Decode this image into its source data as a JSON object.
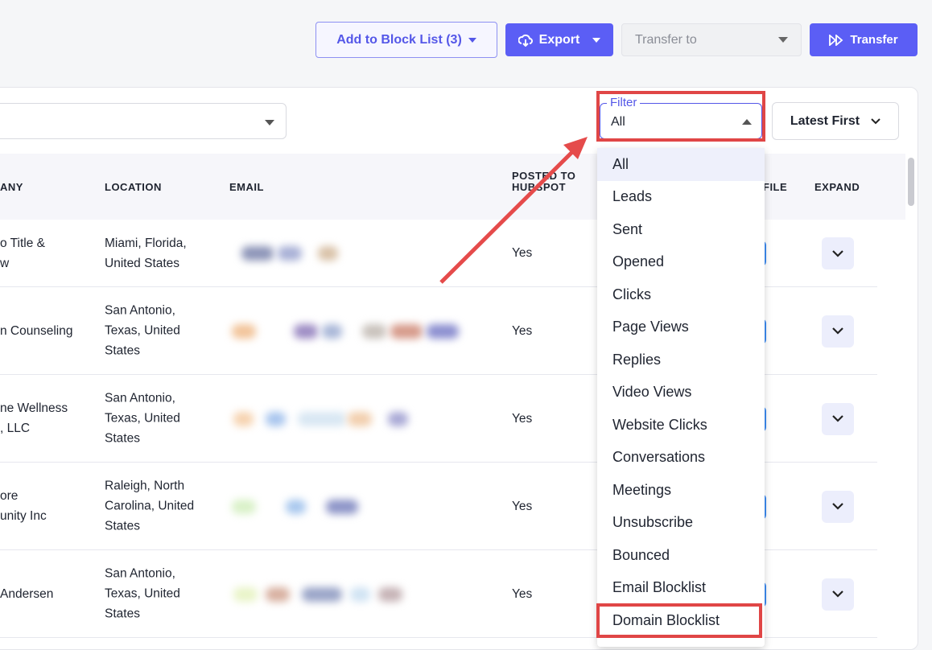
{
  "header": {
    "add_to_block_list": "Add to Block List (3)",
    "export": "Export",
    "transfer_to": "Transfer to",
    "transfer": "Transfer"
  },
  "toolbar": {
    "filter_label": "Filter",
    "filter_value": "All",
    "sort": "Latest First"
  },
  "table": {
    "columns": [
      "ANY",
      "LOCATION",
      "EMAIL",
      "POSTED TO HUBSPOT",
      "FILE",
      "EXPAND"
    ],
    "rows": [
      {
        "company": [
          "o Title &",
          "w"
        ],
        "location": "Miami, Florida, United States",
        "posted": "Yes"
      },
      {
        "company": [
          "n Counseling"
        ],
        "location": "San Antonio, Texas, United States",
        "posted": "Yes"
      },
      {
        "company": [
          "ne Wellness",
          ", LLC"
        ],
        "location": "San Antonio, Texas, United States",
        "posted": "Yes"
      },
      {
        "company": [
          "ore",
          "unity Inc"
        ],
        "location": "Raleigh, North Carolina, United States",
        "posted": "Yes"
      },
      {
        "company": [
          "Andersen"
        ],
        "location": "San Antonio, Texas, United States",
        "posted": "Yes"
      }
    ]
  },
  "filter_menu": {
    "items": [
      "All",
      "Leads",
      "Sent",
      "Opened",
      "Clicks",
      "Page Views",
      "Replies",
      "Video Views",
      "Website Clicks",
      "Conversations",
      "Meetings",
      "Unsubscribe",
      "Bounced",
      "Email Blocklist",
      "Domain Blocklist"
    ]
  }
}
